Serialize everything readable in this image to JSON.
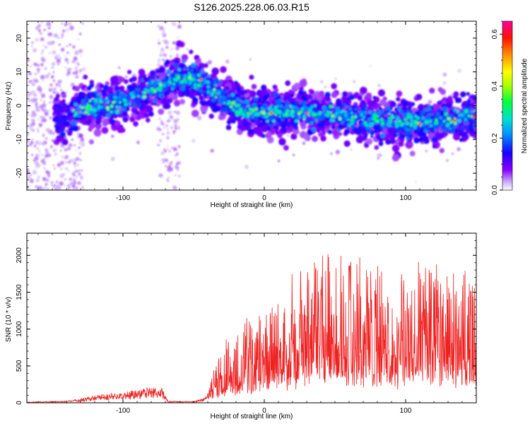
{
  "chart_data": [
    {
      "type": "heatmap",
      "title": "S126.2025.228.06.03.R15",
      "xlabel": "Height of straight line (km)",
      "ylabel": "Frequency (Hz)",
      "xlim": [
        -168,
        150
      ],
      "ylim": [
        -25,
        25
      ],
      "xticks": [
        -100,
        0,
        100
      ],
      "yticks": [
        -20,
        -10,
        0,
        10,
        20
      ],
      "grid": false,
      "colorbar": {
        "label": "Normalized spectral amplitude",
        "range": [
          0.0,
          0.65
        ],
        "ticks": [
          0.0,
          0.2,
          0.4,
          0.6
        ],
        "colors": [
          "#ffffff",
          "#9f00ff",
          "#1a00ff",
          "#00d0ff",
          "#00ff7f",
          "#66ff00",
          "#ffff00",
          "#ff8c00",
          "#ff0000",
          "#ff00a0"
        ]
      },
      "ridge": [
        {
          "x": -168,
          "y": -3
        },
        {
          "x": -140,
          "y": -4
        },
        {
          "x": -130,
          "y": -1
        },
        {
          "x": -110,
          "y": 0
        },
        {
          "x": -90,
          "y": 3
        },
        {
          "x": -70,
          "y": 6
        },
        {
          "x": -60,
          "y": 8
        },
        {
          "x": -50,
          "y": 8
        },
        {
          "x": -40,
          "y": 6
        },
        {
          "x": -30,
          "y": 2
        },
        {
          "x": -15,
          "y": -1
        },
        {
          "x": 0,
          "y": -2
        },
        {
          "x": 30,
          "y": -2
        },
        {
          "x": 60,
          "y": -3
        },
        {
          "x": 90,
          "y": -5
        },
        {
          "x": 120,
          "y": -5
        },
        {
          "x": 150,
          "y": -3
        }
      ]
    },
    {
      "type": "line",
      "xlabel": "Height of straight line (km)",
      "ylabel": "SNR (10 * v/v)",
      "xlim": [
        -168,
        150
      ],
      "ylim": [
        0,
        2300
      ],
      "xticks": [
        -100,
        0,
        100
      ],
      "yticks": [
        0,
        500,
        1000,
        1500,
        2000
      ],
      "grid": false,
      "color": "#ee2222",
      "envelope": [
        {
          "x": -168,
          "y": 10
        },
        {
          "x": -140,
          "y": 20
        },
        {
          "x": -125,
          "y": 60
        },
        {
          "x": -115,
          "y": 100
        },
        {
          "x": -100,
          "y": 110
        },
        {
          "x": -90,
          "y": 150
        },
        {
          "x": -80,
          "y": 170
        },
        {
          "x": -72,
          "y": 160
        },
        {
          "x": -68,
          "y": 20
        },
        {
          "x": -50,
          "y": 15
        },
        {
          "x": -42,
          "y": 60
        },
        {
          "x": -35,
          "y": 220
        },
        {
          "x": -25,
          "y": 340
        },
        {
          "x": -15,
          "y": 430
        },
        {
          "x": 0,
          "y": 500
        },
        {
          "x": 15,
          "y": 600
        },
        {
          "x": 30,
          "y": 720
        },
        {
          "x": 45,
          "y": 800
        },
        {
          "x": 60,
          "y": 780
        },
        {
          "x": 80,
          "y": 720
        },
        {
          "x": 100,
          "y": 700
        },
        {
          "x": 120,
          "y": 720
        },
        {
          "x": 150,
          "y": 700
        }
      ]
    }
  ]
}
